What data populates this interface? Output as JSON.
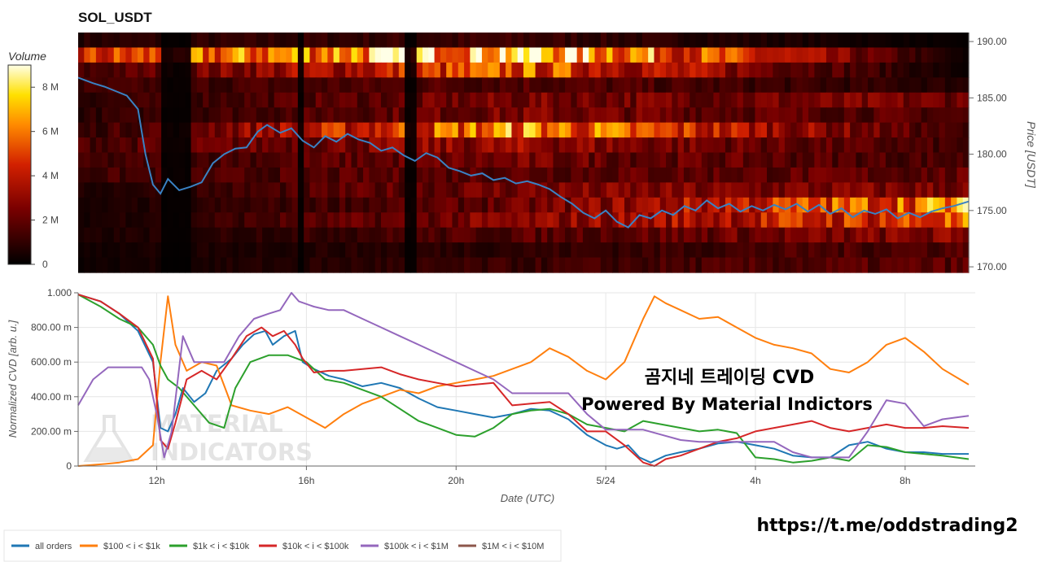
{
  "chart_data": [
    {
      "type": "heatmap",
      "title": "SOL_USDT",
      "ylabel": "Price [USDT]",
      "ylim": [
        169.5,
        190.8
      ],
      "y_ticks": [
        "170.00",
        "175.00",
        "180.00",
        "185.00",
        "190.00"
      ],
      "colorbar": {
        "label": "Volume",
        "ticks": [
          "0",
          "2 M",
          "4 M",
          "6 M",
          "8 M"
        ],
        "range": [
          0,
          9
        ]
      },
      "x_range_hours": [
        9.9,
        33.7
      ],
      "price_series": {
        "x": [
          9.9,
          10.3,
          10.6,
          10.9,
          11.2,
          11.5,
          11.7,
          11.9,
          12.1,
          12.3,
          12.6,
          12.9,
          13.2,
          13.5,
          13.8,
          14.1,
          14.4,
          14.7,
          14.95,
          15.3,
          15.6,
          15.9,
          16.2,
          16.5,
          16.8,
          17.1,
          17.4,
          17.7,
          18.0,
          18.3,
          18.6,
          18.9,
          19.2,
          19.5,
          19.8,
          20.1,
          20.4,
          20.7,
          21.0,
          21.3,
          21.6,
          21.9,
          22.2,
          22.5,
          22.8,
          23.1,
          23.4,
          23.7,
          24.0,
          24.3,
          24.6,
          24.9,
          25.2,
          25.5,
          25.8,
          26.1,
          26.4,
          26.7,
          27.0,
          27.3,
          27.6,
          27.9,
          28.2,
          28.5,
          28.8,
          29.1,
          29.4,
          29.7,
          30.0,
          30.3,
          30.6,
          30.9,
          31.2,
          31.5,
          31.8,
          32.1,
          32.4,
          32.7,
          33.0,
          33.3,
          33.7
        ],
        "y": [
          186.8,
          186.3,
          186.0,
          185.6,
          185.2,
          184.0,
          180.0,
          177.3,
          176.5,
          177.8,
          176.8,
          177.1,
          177.5,
          179.2,
          180.0,
          180.5,
          180.6,
          182.0,
          182.6,
          181.9,
          182.3,
          181.2,
          180.6,
          181.6,
          181.1,
          181.8,
          181.3,
          181.0,
          180.3,
          180.6,
          179.9,
          179.4,
          180.1,
          179.7,
          178.8,
          178.5,
          178.1,
          178.3,
          177.7,
          177.9,
          177.4,
          177.6,
          177.3,
          176.9,
          176.2,
          175.6,
          174.8,
          174.3,
          175.0,
          174.0,
          173.5,
          174.6,
          174.3,
          175.0,
          174.6,
          175.4,
          175.0,
          175.9,
          175.2,
          175.6,
          174.9,
          175.4,
          175.0,
          175.5,
          175.1,
          175.6,
          174.9,
          175.5,
          174.7,
          175.2,
          174.4,
          175.0,
          174.7,
          175.1,
          174.3,
          174.8,
          174.4,
          174.9,
          175.2,
          175.4,
          175.8
        ],
        "color": "#3a82c4"
      },
      "band_levels": [
        {
          "price": 190.0,
          "start": 0.8,
          "mid": 1.2,
          "end": 0.1
        },
        {
          "price": 188.6,
          "start": 4.5,
          "mid": 8.8,
          "end": 0.2
        },
        {
          "price": 187.2,
          "start": 1.4,
          "mid": 5.5,
          "end": 0.2
        },
        {
          "price": 185.8,
          "start": 1.2,
          "mid": 1.8,
          "end": 0.8
        },
        {
          "price": 184.6,
          "start": 1.0,
          "mid": 2.5,
          "end": 2.4
        },
        {
          "price": 183.2,
          "start": 0.9,
          "mid": 2.6,
          "end": 1.6
        },
        {
          "price": 181.9,
          "start": 1.0,
          "mid": 6.6,
          "end": 1.2
        },
        {
          "price": 180.8,
          "start": 1.6,
          "mid": 3.2,
          "end": 1.3
        },
        {
          "price": 179.6,
          "start": 1.2,
          "mid": 2.4,
          "end": 1.5
        },
        {
          "price": 178.3,
          "start": 1.3,
          "mid": 2.0,
          "end": 2.0
        },
        {
          "price": 177.0,
          "start": 0.6,
          "mid": 2.6,
          "end": 2.6
        },
        {
          "price": 175.6,
          "start": 0.4,
          "mid": 2.2,
          "end": 6.6
        },
        {
          "price": 174.4,
          "start": 0.5,
          "mid": 2.8,
          "end": 5.4
        },
        {
          "price": 173.1,
          "start": 0.5,
          "mid": 1.8,
          "end": 2.8
        },
        {
          "price": 171.6,
          "start": 0.4,
          "mid": 1.0,
          "end": 1.8
        },
        {
          "price": 170.4,
          "start": 0.3,
          "mid": 1.2,
          "end": 1.9
        }
      ]
    },
    {
      "type": "line",
      "ylabel": "Normalized CVD [arb. u.]",
      "xlabel": "Date (UTC)",
      "ylim": [
        0,
        1
      ],
      "y_ticks": [
        "0",
        "200.00 m",
        "400.00 m",
        "600.00 m",
        "800.00 m",
        "1.000"
      ],
      "x_ticks": [
        "12h",
        "16h",
        "20h",
        "5/24",
        "4h",
        "8h"
      ],
      "series": [
        {
          "name": "all orders",
          "color": "#1f77b4",
          "x": [
            9.9,
            10.5,
            11.0,
            11.5,
            11.9,
            12.1,
            12.3,
            12.5,
            12.7,
            13.0,
            13.3,
            13.6,
            14.0,
            14.3,
            14.6,
            14.9,
            15.1,
            15.4,
            15.7,
            15.9,
            16.2,
            16.6,
            17.0,
            17.5,
            18.0,
            18.5,
            19.0,
            19.5,
            20.0,
            20.5,
            21.0,
            21.5,
            22.0,
            22.5,
            23.0,
            23.5,
            24.0,
            24.3,
            24.6,
            24.9,
            25.2,
            25.6,
            26.0,
            26.5,
            27.0,
            27.5,
            28.0,
            28.5,
            29.0,
            29.5,
            30.0,
            30.5,
            31.0,
            31.5,
            32.0,
            32.5,
            33.0,
            33.7
          ],
          "y": [
            0.99,
            0.95,
            0.88,
            0.78,
            0.6,
            0.22,
            0.2,
            0.3,
            0.45,
            0.37,
            0.42,
            0.55,
            0.62,
            0.7,
            0.76,
            0.78,
            0.7,
            0.75,
            0.78,
            0.6,
            0.56,
            0.52,
            0.5,
            0.46,
            0.48,
            0.45,
            0.39,
            0.34,
            0.32,
            0.3,
            0.28,
            0.3,
            0.33,
            0.32,
            0.27,
            0.18,
            0.12,
            0.1,
            0.12,
            0.05,
            0.02,
            0.06,
            0.08,
            0.1,
            0.13,
            0.14,
            0.12,
            0.1,
            0.06,
            0.05,
            0.05,
            0.12,
            0.14,
            0.1,
            0.08,
            0.08,
            0.07,
            0.07
          ]
        },
        {
          "name": "$100 < i < $1k",
          "color": "#ff7f0e",
          "x": [
            9.9,
            10.5,
            11.0,
            11.5,
            11.9,
            12.1,
            12.3,
            12.5,
            12.8,
            13.2,
            13.6,
            14.0,
            14.5,
            15.0,
            15.5,
            16.0,
            16.5,
            17.0,
            17.5,
            18.0,
            18.5,
            19.0,
            19.5,
            20.0,
            20.5,
            21.0,
            21.5,
            22.0,
            22.5,
            23.0,
            23.5,
            24.0,
            24.5,
            25.0,
            25.3,
            25.6,
            26.0,
            26.5,
            27.0,
            27.5,
            28.0,
            28.5,
            29.0,
            29.5,
            30.0,
            30.5,
            31.0,
            31.5,
            32.0,
            32.5,
            33.0,
            33.7
          ],
          "y": [
            0.0,
            0.01,
            0.02,
            0.04,
            0.12,
            0.6,
            0.98,
            0.7,
            0.55,
            0.6,
            0.58,
            0.35,
            0.32,
            0.3,
            0.34,
            0.28,
            0.22,
            0.3,
            0.36,
            0.4,
            0.44,
            0.42,
            0.46,
            0.48,
            0.5,
            0.52,
            0.56,
            0.6,
            0.68,
            0.63,
            0.55,
            0.5,
            0.6,
            0.85,
            0.98,
            0.94,
            0.9,
            0.85,
            0.86,
            0.8,
            0.74,
            0.7,
            0.68,
            0.65,
            0.56,
            0.54,
            0.6,
            0.7,
            0.74,
            0.66,
            0.56,
            0.47
          ]
        },
        {
          "name": "$1k < i < $10k",
          "color": "#2ca02c",
          "x": [
            9.9,
            10.5,
            11.0,
            11.5,
            11.9,
            12.1,
            12.3,
            12.6,
            13.0,
            13.4,
            13.8,
            14.1,
            14.5,
            15.0,
            15.5,
            16.0,
            16.5,
            17.0,
            17.5,
            18.0,
            18.5,
            19.0,
            19.5,
            20.0,
            20.5,
            21.0,
            21.5,
            22.0,
            22.5,
            23.0,
            23.5,
            24.0,
            24.5,
            25.0,
            25.5,
            26.0,
            26.5,
            27.0,
            27.5,
            28.0,
            28.5,
            29.0,
            29.5,
            30.0,
            30.5,
            31.0,
            31.5,
            32.0,
            32.5,
            33.0,
            33.7
          ],
          "y": [
            0.99,
            0.92,
            0.85,
            0.8,
            0.7,
            0.58,
            0.5,
            0.45,
            0.35,
            0.25,
            0.22,
            0.45,
            0.6,
            0.64,
            0.64,
            0.6,
            0.5,
            0.48,
            0.44,
            0.4,
            0.33,
            0.26,
            0.22,
            0.18,
            0.17,
            0.22,
            0.3,
            0.32,
            0.33,
            0.3,
            0.24,
            0.22,
            0.2,
            0.26,
            0.24,
            0.22,
            0.2,
            0.21,
            0.19,
            0.05,
            0.04,
            0.02,
            0.03,
            0.05,
            0.03,
            0.12,
            0.11,
            0.08,
            0.07,
            0.06,
            0.04
          ]
        },
        {
          "name": "$10k < i < $100k",
          "color": "#d62728",
          "x": [
            9.9,
            10.5,
            11.0,
            11.5,
            11.9,
            12.1,
            12.3,
            12.5,
            12.8,
            13.2,
            13.6,
            14.0,
            14.4,
            14.8,
            15.1,
            15.4,
            15.7,
            15.9,
            16.2,
            16.6,
            17.0,
            17.5,
            18.0,
            18.5,
            19.0,
            19.5,
            20.0,
            20.5,
            21.0,
            21.5,
            22.0,
            22.5,
            23.0,
            23.5,
            24.0,
            24.5,
            25.0,
            25.3,
            25.6,
            26.0,
            26.5,
            27.0,
            27.5,
            28.0,
            28.5,
            29.0,
            29.5,
            30.0,
            30.5,
            31.0,
            31.5,
            32.0,
            32.5,
            33.0,
            33.7
          ],
          "y": [
            0.99,
            0.95,
            0.88,
            0.8,
            0.62,
            0.15,
            0.1,
            0.25,
            0.5,
            0.55,
            0.5,
            0.62,
            0.75,
            0.8,
            0.75,
            0.78,
            0.7,
            0.62,
            0.54,
            0.55,
            0.55,
            0.56,
            0.57,
            0.53,
            0.5,
            0.48,
            0.46,
            0.47,
            0.48,
            0.35,
            0.36,
            0.37,
            0.3,
            0.2,
            0.2,
            0.12,
            0.02,
            0.0,
            0.04,
            0.06,
            0.1,
            0.14,
            0.16,
            0.2,
            0.22,
            0.24,
            0.26,
            0.22,
            0.2,
            0.22,
            0.24,
            0.22,
            0.22,
            0.23,
            0.22
          ]
        },
        {
          "name": "$100k < i < $1M",
          "color": "#9467bd",
          "x": [
            9.9,
            10.3,
            10.7,
            11.2,
            11.6,
            11.8,
            12.0,
            12.2,
            12.4,
            12.7,
            13.0,
            13.4,
            13.8,
            14.2,
            14.6,
            15.0,
            15.3,
            15.6,
            15.8,
            16.2,
            16.6,
            17.0,
            17.5,
            18.0,
            18.5,
            19.0,
            19.5,
            20.0,
            20.5,
            21.0,
            21.5,
            22.0,
            22.5,
            23.0,
            23.5,
            24.0,
            24.5,
            25.0,
            25.5,
            26.0,
            26.5,
            27.0,
            27.5,
            28.0,
            28.5,
            29.0,
            29.5,
            30.0,
            30.5,
            31.0,
            31.5,
            32.0,
            32.5,
            33.0,
            33.7
          ],
          "y": [
            0.35,
            0.5,
            0.57,
            0.57,
            0.57,
            0.5,
            0.3,
            0.05,
            0.2,
            0.75,
            0.6,
            0.6,
            0.6,
            0.75,
            0.85,
            0.88,
            0.9,
            1.0,
            0.95,
            0.92,
            0.9,
            0.9,
            0.85,
            0.8,
            0.75,
            0.7,
            0.65,
            0.6,
            0.55,
            0.5,
            0.42,
            0.42,
            0.42,
            0.42,
            0.3,
            0.21,
            0.21,
            0.21,
            0.18,
            0.15,
            0.14,
            0.14,
            0.14,
            0.14,
            0.14,
            0.08,
            0.05,
            0.05,
            0.05,
            0.2,
            0.38,
            0.36,
            0.23,
            0.27,
            0.29
          ]
        },
        {
          "name": "$1M < i < $10M",
          "color": "#8c564b",
          "x": [],
          "y": []
        }
      ]
    }
  ],
  "overlay": {
    "line1": "곰지네 트레이딩 CVD",
    "line2": "Powered By Material Indictors",
    "link": "https://t.me/oddstrading2",
    "watermark_top": "MATERIAL",
    "watermark_bottom": "INDICATORS"
  }
}
